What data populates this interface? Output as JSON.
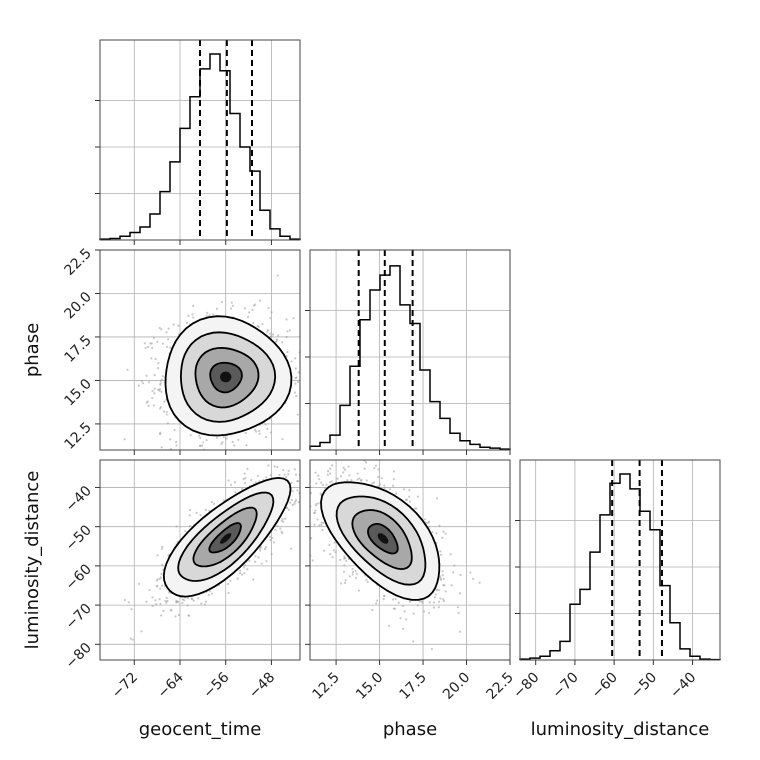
{
  "chart_data": {
    "type": "corner",
    "parameters": [
      "geocent_time",
      "phase",
      "luminosity_distance"
    ],
    "axis_labels": {
      "x": [
        "geocent_time",
        "phase",
        "luminosity_distance"
      ],
      "y": [
        "",
        "phase",
        "luminosity_distance"
      ]
    },
    "ranges": {
      "geocent_time": [
        -78,
        -43
      ],
      "phase": [
        11.0,
        22.5
      ],
      "luminosity_distance": [
        -84,
        -33
      ]
    },
    "ticks": {
      "geocent_time": {
        "values": [
          -72,
          -64,
          -56,
          -48
        ],
        "labels": [
          "−72",
          "−64",
          "−56",
          "−48"
        ]
      },
      "phase": {
        "values": [
          12.5,
          15.0,
          17.5,
          20.0,
          22.5
        ],
        "labels": [
          "12.5",
          "15.0",
          "17.5",
          "20.0",
          "22.5"
        ]
      },
      "luminosity_distance": {
        "values": [
          -80,
          -70,
          -60,
          -50,
          -40
        ],
        "labels": [
          "−80",
          "−70",
          "−60",
          "−50",
          "−40"
        ]
      }
    },
    "histograms": [
      {
        "parameter": "geocent_time",
        "bin_edges": [
          -78,
          -76.25,
          -74.5,
          -72.75,
          -71,
          -69.25,
          -67.5,
          -65.75,
          -64,
          -62.25,
          -60.5,
          -58.75,
          -57,
          -55.25,
          -53.5,
          -51.75,
          -50,
          -48.25,
          -46.5,
          -44.75,
          -43
        ],
        "counts": [
          0.005,
          0.008,
          0.02,
          0.04,
          0.07,
          0.14,
          0.26,
          0.42,
          0.6,
          0.77,
          0.92,
          1.0,
          0.91,
          0.68,
          0.5,
          0.37,
          0.16,
          0.06,
          0.02,
          0.005
        ],
        "quantiles": [
          -60.5,
          -55.8,
          -51.4
        ]
      },
      {
        "parameter": "phase",
        "bin_edges": [
          11.0,
          11.575,
          12.15,
          12.725,
          13.3,
          13.875,
          14.45,
          15.025,
          15.6,
          16.175,
          16.75,
          17.325,
          17.9,
          18.475,
          19.05,
          19.625,
          20.2,
          20.775,
          21.35,
          21.925,
          22.5
        ],
        "counts": [
          0.02,
          0.04,
          0.08,
          0.24,
          0.45,
          0.7,
          0.86,
          0.94,
          0.99,
          0.78,
          0.68,
          0.43,
          0.26,
          0.17,
          0.09,
          0.05,
          0.03,
          0.015,
          0.01,
          0.005
        ],
        "quantiles": [
          13.8,
          15.3,
          16.9
        ]
      },
      {
        "parameter": "luminosity_distance",
        "bin_edges": [
          -84,
          -81.45,
          -78.9,
          -76.35,
          -73.8,
          -71.25,
          -68.7,
          -66.15,
          -63.6,
          -61.05,
          -58.5,
          -55.95,
          -53.4,
          -50.85,
          -48.3,
          -45.75,
          -43.2,
          -40.65,
          -38.1,
          -35.55,
          -33
        ],
        "counts": [
          0.005,
          0.01,
          0.02,
          0.05,
          0.1,
          0.3,
          0.38,
          0.58,
          0.78,
          0.95,
          1.0,
          0.92,
          0.8,
          0.7,
          0.4,
          0.2,
          0.06,
          0.02,
          0.005,
          0.002
        ],
        "quantiles": [
          -60.5,
          -53.5,
          -47.8
        ]
      }
    ],
    "pair_plots": [
      {
        "x": "geocent_time",
        "y": "phase",
        "mean": [
          -56,
          15.2
        ],
        "sigma": [
          5.5,
          1.7
        ],
        "rho": 0.0
      },
      {
        "x": "geocent_time",
        "y": "luminosity_distance",
        "mean": [
          -56,
          -53
        ],
        "sigma": [
          5.5,
          7.5
        ],
        "rho": 0.75
      },
      {
        "x": "phase",
        "y": "luminosity_distance",
        "mean": [
          15.2,
          -53
        ],
        "sigma": [
          1.7,
          7.5
        ],
        "rho": -0.55
      }
    ],
    "contour_levels_sigma": [
      0.5,
      1.0,
      1.5,
      2.0
    ],
    "grid": true,
    "legend": "none"
  }
}
